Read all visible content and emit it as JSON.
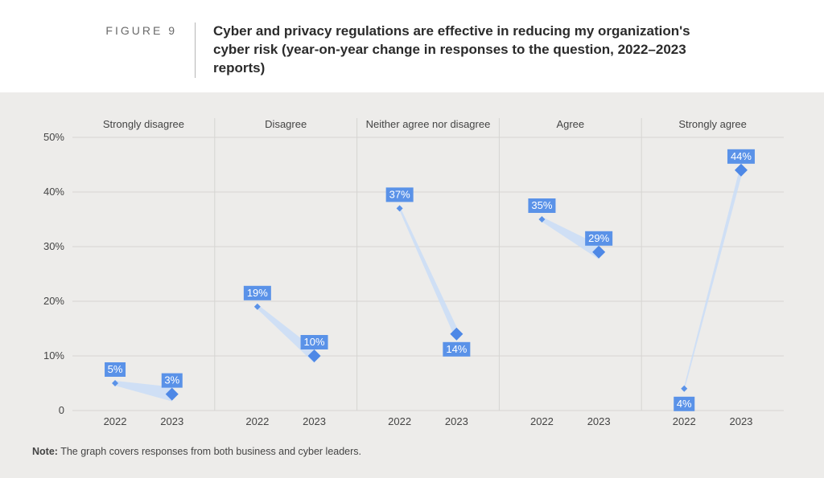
{
  "figure_label": "FIGURE 9",
  "title": "Cyber and privacy regulations are effective in reducing my organization's cyber risk (year-on-year change in responses to the question, 2022–2023 reports)",
  "note_prefix": "Note:",
  "note_text": " The graph covers responses from both business and cyber leaders.",
  "chart": {
    "type": "slope-panels",
    "background_color": "#edecea",
    "grid_color": "#d6d5d2",
    "series_color": "#5a92e8",
    "area_fill_color": "#c9ddf7",
    "label_box_color": "#5a92e8",
    "label_text_color": "#ffffff",
    "marker_2022_size": 4,
    "marker_2023_size": 8,
    "axis_fontsize": 13,
    "ylim": [
      0,
      50
    ],
    "ytick_step": 10,
    "ytick_suffix": "%",
    "show_zero_suffix": false,
    "x_labels": [
      "2022",
      "2023"
    ],
    "panels": [
      {
        "category": "Strongly disagree",
        "y2022": 5,
        "y2023": 3,
        "label_pos_2022": "above",
        "label_pos_2023": "above"
      },
      {
        "category": "Disagree",
        "y2022": 19,
        "y2023": 10,
        "label_pos_2022": "above",
        "label_pos_2023": "above"
      },
      {
        "category": "Neither agree nor disagree",
        "y2022": 37,
        "y2023": 14,
        "label_pos_2022": "above",
        "label_pos_2023": "below"
      },
      {
        "category": "Agree",
        "y2022": 35,
        "y2023": 29,
        "label_pos_2022": "above",
        "label_pos_2023": "above"
      },
      {
        "category": "Strongly agree",
        "y2022": 4,
        "y2023": 44,
        "label_pos_2022": "below",
        "label_pos_2023": "above"
      }
    ]
  }
}
